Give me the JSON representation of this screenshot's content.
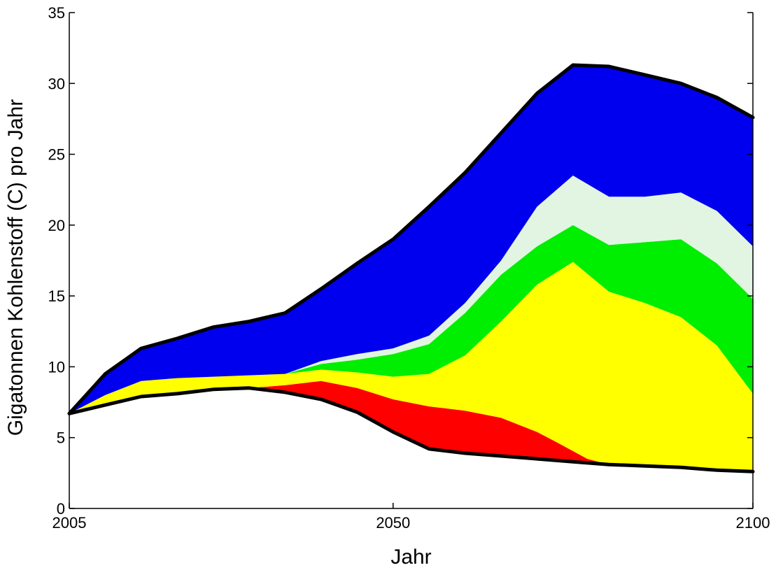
{
  "chart_data": {
    "type": "area",
    "stacked": true,
    "xlabel": "Jahr",
    "ylabel": "Gigatonnen Kohlenstoff (C) pro Jahr",
    "xlim": [
      2005,
      2100
    ],
    "ylim": [
      0,
      35
    ],
    "x_ticks": [
      2005,
      2050,
      2100
    ],
    "y_ticks": [
      0,
      5,
      10,
      15,
      20,
      25,
      30,
      35
    ],
    "grid": false,
    "legend": "none",
    "bands": [
      {
        "color": "#ffffff",
        "points": [
          [
            2005,
            0
          ],
          [
            2050,
            0
          ],
          [
            2100,
            0
          ],
          [
            2100,
            2.6
          ],
          [
            2095,
            2.7
          ],
          [
            2090,
            2.9
          ],
          [
            2085,
            3.0
          ],
          [
            2080,
            3.1
          ],
          [
            2075,
            3.3
          ],
          [
            2070,
            3.5
          ],
          [
            2065,
            3.7
          ],
          [
            2060,
            3.9
          ],
          [
            2055,
            4.2
          ],
          [
            2050,
            5.4
          ],
          [
            2045,
            6.8
          ],
          [
            2040,
            7.7
          ],
          [
            2035,
            8.2
          ],
          [
            2030,
            8.5
          ],
          [
            2025,
            8.4
          ],
          [
            2020,
            8.1
          ],
          [
            2015,
            7.9
          ],
          [
            2010,
            7.3
          ],
          [
            2005,
            6.7
          ]
        ]
      },
      {
        "color": "#ff0000",
        "points": [
          [
            2035,
            8.2
          ],
          [
            2040,
            7.7
          ],
          [
            2045,
            6.8
          ],
          [
            2050,
            5.4
          ],
          [
            2055,
            4.2
          ],
          [
            2060,
            3.9
          ],
          [
            2065,
            3.7
          ],
          [
            2070,
            3.5
          ],
          [
            2075,
            3.3
          ],
          [
            2080,
            3.1
          ],
          [
            2077,
            3.5
          ],
          [
            2073,
            4.6
          ],
          [
            2070,
            5.4
          ],
          [
            2065,
            6.4
          ],
          [
            2060,
            6.9
          ],
          [
            2055,
            7.2
          ],
          [
            2050,
            7.7
          ],
          [
            2045,
            8.5
          ],
          [
            2040,
            9.0
          ],
          [
            2035,
            8.7
          ],
          [
            2030,
            8.5
          ]
        ]
      },
      {
        "color": "#ffff00",
        "points": [
          [
            2005,
            6.7
          ],
          [
            2010,
            7.3
          ],
          [
            2015,
            7.9
          ],
          [
            2020,
            8.1
          ],
          [
            2025,
            8.4
          ],
          [
            2030,
            8.5
          ],
          [
            2035,
            8.7
          ],
          [
            2040,
            9.0
          ],
          [
            2045,
            8.5
          ],
          [
            2050,
            7.7
          ],
          [
            2055,
            7.2
          ],
          [
            2060,
            6.9
          ],
          [
            2065,
            6.4
          ],
          [
            2070,
            5.4
          ],
          [
            2073,
            4.6
          ],
          [
            2077,
            3.5
          ],
          [
            2080,
            3.1
          ],
          [
            2085,
            3.0
          ],
          [
            2090,
            2.9
          ],
          [
            2095,
            2.7
          ],
          [
            2100,
            2.6
          ],
          [
            2100,
            8.1
          ],
          [
            2095,
            11.5
          ],
          [
            2090,
            13.5
          ],
          [
            2085,
            14.5
          ],
          [
            2080,
            15.3
          ],
          [
            2075,
            17.4
          ],
          [
            2070,
            15.8
          ],
          [
            2065,
            13.2
          ],
          [
            2060,
            10.8
          ],
          [
            2055,
            9.5
          ],
          [
            2050,
            9.3
          ],
          [
            2045,
            9.6
          ],
          [
            2040,
            9.8
          ],
          [
            2035,
            9.5
          ],
          [
            2030,
            9.4
          ],
          [
            2025,
            9.3
          ],
          [
            2020,
            9.2
          ],
          [
            2015,
            9.0
          ],
          [
            2010,
            8.0
          ],
          [
            2005,
            6.7
          ]
        ]
      },
      {
        "color": "#00ee00",
        "points": [
          [
            2035,
            9.5
          ],
          [
            2040,
            9.8
          ],
          [
            2045,
            9.6
          ],
          [
            2050,
            9.3
          ],
          [
            2055,
            9.5
          ],
          [
            2060,
            10.8
          ],
          [
            2065,
            13.2
          ],
          [
            2070,
            15.8
          ],
          [
            2075,
            17.4
          ],
          [
            2080,
            15.3
          ],
          [
            2085,
            14.5
          ],
          [
            2090,
            13.5
          ],
          [
            2095,
            11.5
          ],
          [
            2100,
            8.1
          ],
          [
            2100,
            14.8
          ],
          [
            2095,
            17.3
          ],
          [
            2090,
            19.0
          ],
          [
            2085,
            18.8
          ],
          [
            2080,
            18.6
          ],
          [
            2075,
            20.0
          ],
          [
            2070,
            18.5
          ],
          [
            2065,
            16.5
          ],
          [
            2060,
            13.8
          ],
          [
            2055,
            11.6
          ],
          [
            2050,
            10.9
          ],
          [
            2045,
            10.5
          ],
          [
            2040,
            10.2
          ],
          [
            2035,
            9.5
          ]
        ]
      },
      {
        "color": "#e2f5e2",
        "points": [
          [
            2035,
            9.5
          ],
          [
            2040,
            10.2
          ],
          [
            2045,
            10.5
          ],
          [
            2050,
            10.9
          ],
          [
            2055,
            11.6
          ],
          [
            2060,
            13.8
          ],
          [
            2065,
            16.5
          ],
          [
            2070,
            18.5
          ],
          [
            2075,
            20.0
          ],
          [
            2080,
            18.6
          ],
          [
            2085,
            18.8
          ],
          [
            2090,
            19.0
          ],
          [
            2095,
            17.3
          ],
          [
            2100,
            14.8
          ],
          [
            2100,
            18.5
          ],
          [
            2095,
            21.0
          ],
          [
            2090,
            22.3
          ],
          [
            2085,
            22.0
          ],
          [
            2080,
            22.0
          ],
          [
            2075,
            23.5
          ],
          [
            2070,
            21.3
          ],
          [
            2065,
            17.5
          ],
          [
            2060,
            14.5
          ],
          [
            2055,
            12.2
          ],
          [
            2050,
            11.3
          ],
          [
            2045,
            10.9
          ],
          [
            2040,
            10.4
          ],
          [
            2035,
            9.5
          ]
        ]
      },
      {
        "color": "#0000ee",
        "points": [
          [
            2005,
            6.7
          ],
          [
            2010,
            8.0
          ],
          [
            2015,
            9.0
          ],
          [
            2020,
            9.2
          ],
          [
            2025,
            9.3
          ],
          [
            2030,
            9.4
          ],
          [
            2035,
            9.5
          ],
          [
            2040,
            10.4
          ],
          [
            2045,
            10.9
          ],
          [
            2050,
            11.3
          ],
          [
            2055,
            12.2
          ],
          [
            2060,
            14.5
          ],
          [
            2065,
            17.5
          ],
          [
            2070,
            21.3
          ],
          [
            2075,
            23.5
          ],
          [
            2080,
            22.0
          ],
          [
            2085,
            22.0
          ],
          [
            2090,
            22.3
          ],
          [
            2095,
            21.0
          ],
          [
            2100,
            18.5
          ],
          [
            2100,
            27.6
          ],
          [
            2095,
            29.0
          ],
          [
            2090,
            30.0
          ],
          [
            2085,
            30.6
          ],
          [
            2080,
            31.2
          ],
          [
            2075,
            31.3
          ],
          [
            2070,
            29.3
          ],
          [
            2065,
            26.5
          ],
          [
            2060,
            23.7
          ],
          [
            2055,
            21.3
          ],
          [
            2050,
            19.0
          ],
          [
            2045,
            17.3
          ],
          [
            2040,
            15.5
          ],
          [
            2035,
            13.8
          ],
          [
            2030,
            13.2
          ],
          [
            2025,
            12.8
          ],
          [
            2020,
            12.0
          ],
          [
            2015,
            11.3
          ],
          [
            2010,
            9.5
          ],
          [
            2005,
            6.7
          ]
        ]
      }
    ],
    "outline_upper": [
      [
        2005,
        6.7
      ],
      [
        2010,
        9.5
      ],
      [
        2015,
        11.3
      ],
      [
        2020,
        12.0
      ],
      [
        2025,
        12.8
      ],
      [
        2030,
        13.2
      ],
      [
        2035,
        13.8
      ],
      [
        2040,
        15.5
      ],
      [
        2045,
        17.3
      ],
      [
        2050,
        19.0
      ],
      [
        2055,
        21.3
      ],
      [
        2060,
        23.7
      ],
      [
        2065,
        26.5
      ],
      [
        2070,
        29.3
      ],
      [
        2075,
        31.3
      ],
      [
        2080,
        31.2
      ],
      [
        2085,
        30.6
      ],
      [
        2090,
        30.0
      ],
      [
        2095,
        29.0
      ],
      [
        2100,
        27.6
      ]
    ],
    "outline_lower": [
      [
        2005,
        6.7
      ],
      [
        2010,
        7.3
      ],
      [
        2015,
        7.9
      ],
      [
        2020,
        8.1
      ],
      [
        2025,
        8.4
      ],
      [
        2030,
        8.5
      ],
      [
        2035,
        8.2
      ],
      [
        2040,
        7.7
      ],
      [
        2045,
        6.8
      ],
      [
        2050,
        5.4
      ],
      [
        2055,
        4.2
      ],
      [
        2060,
        3.9
      ],
      [
        2065,
        3.7
      ],
      [
        2070,
        3.5
      ],
      [
        2075,
        3.3
      ],
      [
        2080,
        3.1
      ],
      [
        2085,
        3.0
      ],
      [
        2090,
        2.9
      ],
      [
        2095,
        2.7
      ],
      [
        2100,
        2.6
      ]
    ]
  }
}
